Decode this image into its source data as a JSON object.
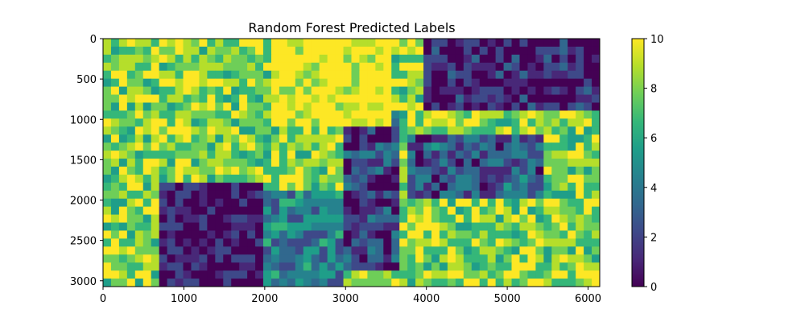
{
  "chart_data": {
    "type": "heatmap",
    "title": "Random Forest Predicted Labels",
    "xlabel": "",
    "ylabel": "",
    "xlim": [
      0,
      6144
    ],
    "ylim": [
      3072,
      0
    ],
    "x_ticks": [
      "0",
      "1000",
      "2000",
      "3000",
      "4000",
      "5000",
      "6000"
    ],
    "y_ticks": [
      "0",
      "500",
      "1000",
      "1500",
      "2000",
      "2500",
      "3000"
    ],
    "colorbar": {
      "range": [
        0,
        10
      ],
      "ticks": [
        "0",
        "2",
        "4",
        "6",
        "8",
        "10"
      ],
      "colormap": "viridis",
      "colors": [
        "#440154",
        "#482878",
        "#3e4989",
        "#31688e",
        "#26828e",
        "#1f9e89",
        "#35b779",
        "#6ece58",
        "#b5de2b",
        "#fde725"
      ]
    },
    "grid": false,
    "legend": "colorbar-right"
  }
}
